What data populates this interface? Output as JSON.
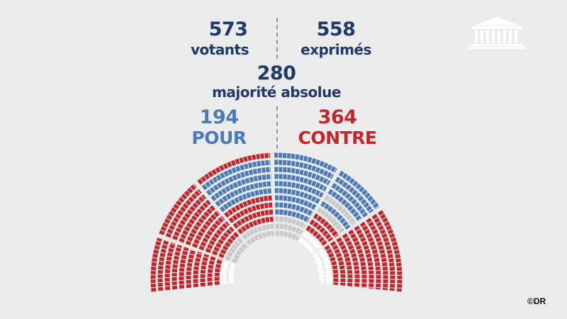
{
  "votes": {
    "votants": {
      "value": "573",
      "label": "votants"
    },
    "exprimes": {
      "value": "558",
      "label": "exprimés"
    },
    "majorite": {
      "value": "280",
      "label": "majorité absolue"
    },
    "pour": {
      "value": "194",
      "label": "POUR"
    },
    "contre": {
      "value": "364",
      "label": "CONTRE"
    }
  },
  "colors": {
    "navy": "#1f3a68",
    "pour": "#4a7bb7",
    "contre": "#c0272d",
    "abstention": "#c9c9c9",
    "absent": "#ffffff",
    "background": "#ebebeb"
  },
  "logo": {
    "icon": "assemblee-nationale-building-icon"
  },
  "credit": "©DR"
}
